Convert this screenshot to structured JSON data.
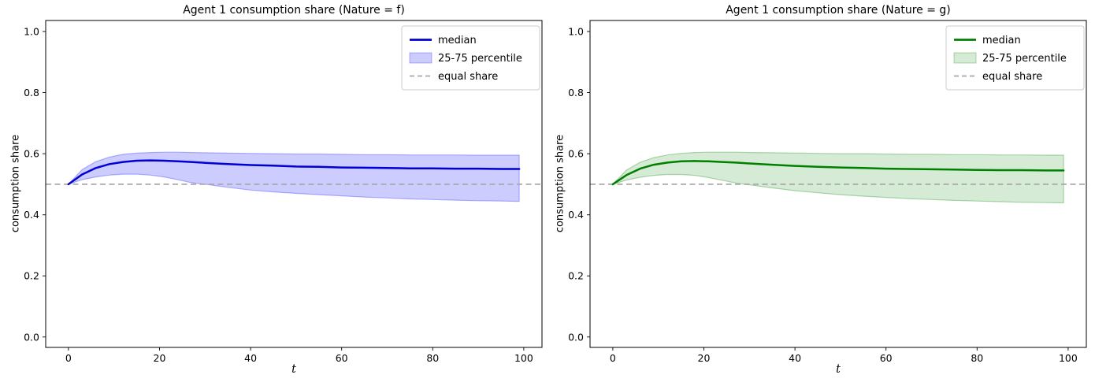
{
  "chart_data": [
    {
      "type": "line",
      "title": "Agent 1 consumption share (Nature = f)",
      "xlabel": "t",
      "ylabel": "consumption share",
      "xlim": [
        -5,
        104
      ],
      "ylim": [
        -0.034,
        1.036
      ],
      "xticks": [
        0,
        20,
        40,
        60,
        80,
        100
      ],
      "xtick_labels": [
        "0",
        "20",
        "40",
        "60",
        "80",
        "100"
      ],
      "yticks": [
        0.0,
        0.2,
        0.4,
        0.6,
        0.8,
        1.0
      ],
      "ytick_labels": [
        "0.0",
        "0.2",
        "0.4",
        "0.6",
        "0.8",
        "1.0"
      ],
      "grid": false,
      "legend_loc": "upper right",
      "equal_share": 0.5,
      "legend": [
        {
          "label": "median",
          "swatch": "line"
        },
        {
          "label": "25-75 percentile",
          "swatch": "patch"
        },
        {
          "label": "equal share",
          "swatch": "dashed"
        }
      ],
      "colors": {
        "line": "#0000d5",
        "band_fill": "rgba(0,0,255,0.20)",
        "band_edge": "rgba(0,0,255,0.28)",
        "dashed": "#a8a8a8"
      },
      "series": {
        "t": [
          0,
          3,
          6,
          9,
          12,
          15,
          18,
          21,
          24,
          27,
          30,
          35,
          40,
          45,
          50,
          55,
          60,
          65,
          70,
          75,
          80,
          85,
          90,
          95,
          99
        ],
        "median": [
          0.5,
          0.532,
          0.553,
          0.566,
          0.573,
          0.577,
          0.578,
          0.577,
          0.575,
          0.573,
          0.57,
          0.566,
          0.563,
          0.561,
          0.558,
          0.557,
          0.555,
          0.554,
          0.553,
          0.552,
          0.552,
          0.551,
          0.551,
          0.55,
          0.55
        ],
        "p75": [
          0.5,
          0.548,
          0.574,
          0.589,
          0.598,
          0.602,
          0.604,
          0.605,
          0.605,
          0.604,
          0.603,
          0.602,
          0.601,
          0.6,
          0.599,
          0.599,
          0.598,
          0.597,
          0.597,
          0.596,
          0.596,
          0.596,
          0.595,
          0.595,
          0.595
        ],
        "p25": [
          0.5,
          0.515,
          0.524,
          0.53,
          0.533,
          0.533,
          0.53,
          0.524,
          0.515,
          0.505,
          0.5,
          0.49,
          0.481,
          0.475,
          0.47,
          0.466,
          0.462,
          0.458,
          0.455,
          0.452,
          0.45,
          0.448,
          0.446,
          0.445,
          0.444
        ]
      }
    },
    {
      "type": "line",
      "title": "Agent 1 consumption share (Nature = g)",
      "xlabel": "t",
      "ylabel": "consumption share",
      "xlim": [
        -5,
        104
      ],
      "ylim": [
        -0.034,
        1.036
      ],
      "xticks": [
        0,
        20,
        40,
        60,
        80,
        100
      ],
      "xtick_labels": [
        "0",
        "20",
        "40",
        "60",
        "80",
        "100"
      ],
      "yticks": [
        0.0,
        0.2,
        0.4,
        0.6,
        0.8,
        1.0
      ],
      "ytick_labels": [
        "0.0",
        "0.2",
        "0.4",
        "0.6",
        "0.8",
        "1.0"
      ],
      "grid": false,
      "legend_loc": "upper right",
      "equal_share": 0.5,
      "legend": [
        {
          "label": "median",
          "swatch": "line"
        },
        {
          "label": "25-75 percentile",
          "swatch": "patch"
        },
        {
          "label": "equal share",
          "swatch": "dashed"
        }
      ],
      "colors": {
        "line": "#008000",
        "band_fill": "rgba(0,128,0,0.16)",
        "band_edge": "rgba(0,128,0,0.30)",
        "dashed": "#a8a8a8"
      },
      "series": {
        "t": [
          0,
          3,
          6,
          9,
          12,
          15,
          18,
          21,
          24,
          27,
          30,
          35,
          40,
          45,
          50,
          55,
          60,
          65,
          70,
          75,
          80,
          85,
          90,
          95,
          99
        ],
        "median": [
          0.5,
          0.53,
          0.551,
          0.564,
          0.571,
          0.575,
          0.576,
          0.575,
          0.573,
          0.571,
          0.568,
          0.564,
          0.56,
          0.557,
          0.555,
          0.553,
          0.551,
          0.55,
          0.549,
          0.548,
          0.547,
          0.546,
          0.546,
          0.545,
          0.545
        ],
        "p75": [
          0.5,
          0.546,
          0.572,
          0.587,
          0.596,
          0.601,
          0.604,
          0.605,
          0.605,
          0.605,
          0.604,
          0.603,
          0.602,
          0.601,
          0.6,
          0.6,
          0.599,
          0.598,
          0.598,
          0.597,
          0.597,
          0.596,
          0.596,
          0.595,
          0.595
        ],
        "p25": [
          0.5,
          0.514,
          0.523,
          0.529,
          0.532,
          0.532,
          0.529,
          0.522,
          0.513,
          0.504,
          0.498,
          0.488,
          0.479,
          0.472,
          0.466,
          0.461,
          0.457,
          0.453,
          0.45,
          0.447,
          0.445,
          0.443,
          0.441,
          0.44,
          0.439
        ]
      }
    }
  ]
}
